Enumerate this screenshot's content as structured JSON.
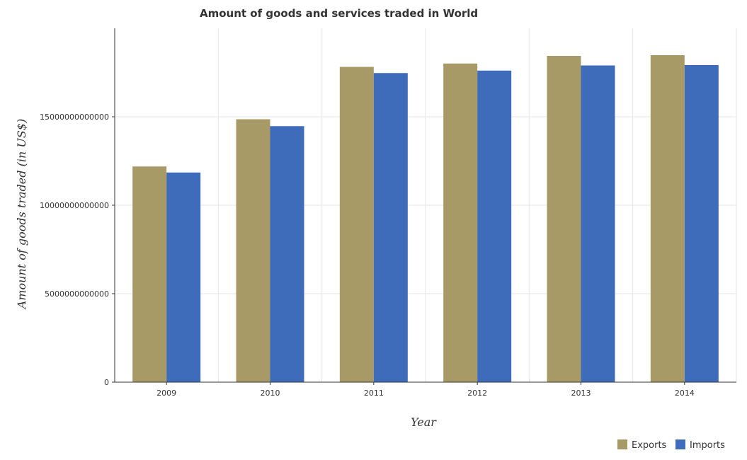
{
  "chart_data": {
    "type": "bar",
    "title": "Amount of goods and services traded in World",
    "xlabel": "Year",
    "ylabel": "Amount of goods traded (in US$)",
    "categories": [
      "2009",
      "2010",
      "2011",
      "2012",
      "2013",
      "2014"
    ],
    "series": [
      {
        "name": "Exports",
        "color": "#a89a67",
        "values": [
          12190000000000,
          14860000000000,
          17820000000000,
          18010000000000,
          18440000000000,
          18480000000000
        ]
      },
      {
        "name": "Imports",
        "color": "#3f6cba",
        "values": [
          11850000000000,
          14470000000000,
          17470000000000,
          17610000000000,
          17900000000000,
          17920000000000
        ]
      }
    ],
    "ylim": [
      0,
      20000000000000
    ],
    "yticks": [
      0,
      5000000000000,
      10000000000000,
      15000000000000
    ],
    "ytick_labels": [
      "0",
      "5000000000000",
      "10000000000000",
      "15000000000000"
    ],
    "grid": true,
    "legend_position": "bottom-right"
  }
}
